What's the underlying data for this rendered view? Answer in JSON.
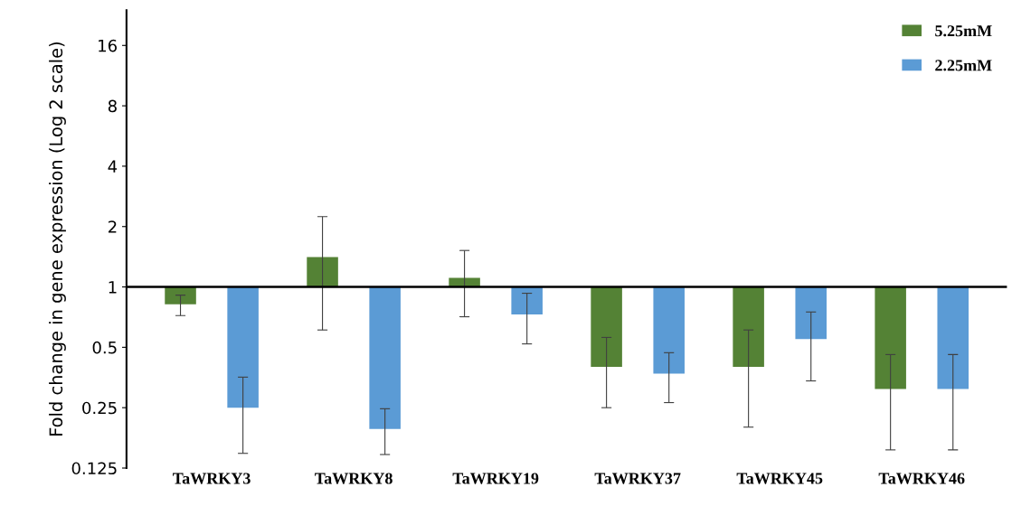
{
  "chart_data": {
    "type": "bar",
    "ylabel": "Fold change in gene expression (Log 2 scale)",
    "categories": [
      "TaWRKY3",
      "TaWRKY8",
      "TaWRKY19",
      "TaWRKY37",
      "TaWRKY45",
      "TaWRKY46"
    ],
    "series": [
      {
        "name": "5.25mM",
        "color": "#548235",
        "base": [
          1,
          1,
          1,
          1,
          1,
          1
        ],
        "values": [
          -0.18,
          0.41,
          0.11,
          -0.6,
          -0.6,
          -0.69
        ],
        "errors": [
          [
            0.72,
            0.91
          ],
          [
            0.61,
            2.24
          ],
          [
            0.71,
            1.52
          ],
          [
            0.25,
            0.56
          ],
          [
            0.2,
            0.61
          ],
          [
            0.154,
            0.46
          ]
        ]
      },
      {
        "name": "2.25mM",
        "color": "#5b9bd5",
        "base": [
          1,
          1,
          1,
          1,
          1,
          1
        ],
        "values": [
          -0.75,
          -0.804,
          -0.27,
          -0.63,
          -0.45,
          -0.69
        ],
        "errors": [
          [
            0.148,
            0.355
          ],
          [
            0.146,
            0.247
          ],
          [
            0.52,
            0.93
          ],
          [
            0.265,
            0.47
          ],
          [
            0.34,
            0.75
          ],
          [
            0.154,
            0.46
          ]
        ]
      }
    ],
    "log": "y",
    "ylim": [
      0.125,
      24
    ],
    "yticks": [
      0.125,
      0.25,
      0.5,
      1,
      2,
      4,
      8,
      16
    ],
    "ref_lines": [
      {
        "axis": "y",
        "value": 1,
        "color": "#000000"
      }
    ],
    "grid": false,
    "legend": "top right"
  }
}
